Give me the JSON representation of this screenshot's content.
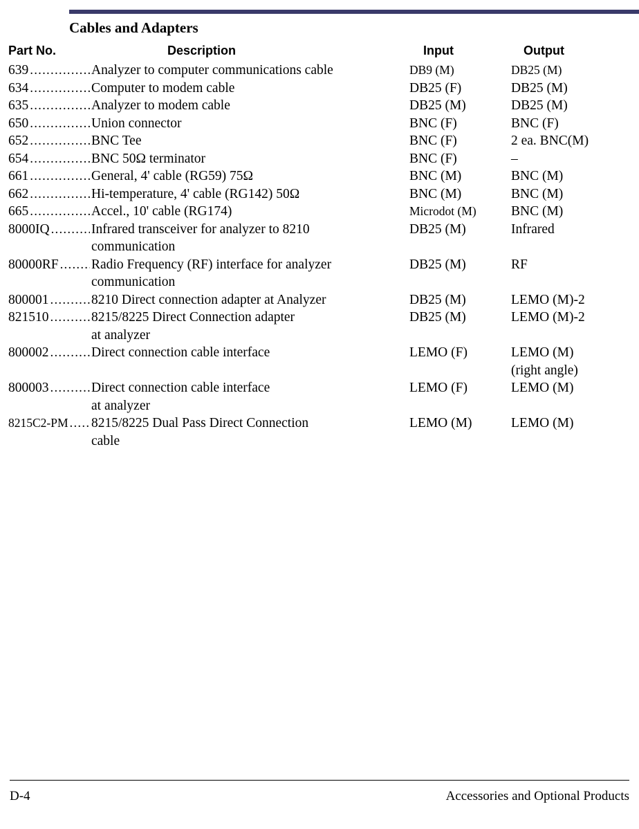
{
  "colors": {
    "topbar": "#3a3a6a",
    "text": "#000000",
    "background": "#ffffff"
  },
  "section_title": "Cables and Adapters",
  "headers": {
    "part": "Part No.",
    "desc": "Description",
    "input": "Input",
    "output": "Output"
  },
  "rows": [
    {
      "part": "639",
      "desc": "Analyzer to computer communications cable",
      "input": "DB9 (M)",
      "input_cond": true,
      "output": "DB25 (M)",
      "output_cond": true
    },
    {
      "part": "634",
      "desc": "Computer to modem cable",
      "input": "DB25 (F)",
      "output": "DB25 (M)"
    },
    {
      "part": "635",
      "desc": "Analyzer to modem cable",
      "input": "DB25 (M)",
      "output": "DB25 (M)"
    },
    {
      "part": "650",
      "desc": "Union connector",
      "input": "BNC (F)",
      "output": "BNC (F)"
    },
    {
      "part": "652",
      "desc": "BNC Tee",
      "input": "BNC (F)",
      "output": "2 ea. BNC(M)"
    },
    {
      "part": "654",
      "desc": "BNC 50Ω terminator",
      "input": "BNC (F)",
      "output": " –"
    },
    {
      "part": "661",
      "desc": "General, 4' cable (RG59) 75Ω",
      "input": "BNC (M)",
      "output": "BNC (M)"
    },
    {
      "part": "662",
      "desc": "Hi-temperature, 4' cable (RG142) 50Ω",
      "input": "BNC (M)",
      "output": "BNC (M)"
    },
    {
      "part": "665",
      "desc": "Accel., 10' cable (RG174)",
      "input": "Microdot (M)",
      "input_cond": true,
      "output": "BNC (M)"
    },
    {
      "part": "8000IQ",
      "desc": "Infrared transceiver for analyzer to 8210",
      "desc2": "communication",
      "input": "DB25 (M)",
      "output": "Infrared"
    },
    {
      "part": "80000RF",
      "desc": "Radio Frequency (RF) interface for analyzer",
      "desc2": "communication",
      "input": "DB25 (M)",
      "output": "RF"
    },
    {
      "part": "800001",
      "desc": "8210 Direct connection adapter at Analyzer",
      "input": "DB25 (M)",
      "output": "LEMO (M)-2"
    },
    {
      "part": "821510",
      "desc": "8215/8225 Direct Connection adapter",
      "desc2": "at analyzer",
      "input": "DB25 (M)",
      "output": "LEMO (M)-2"
    },
    {
      "part": "800002",
      "desc": "Direct connection cable interface",
      "input": "LEMO (F)",
      "output": "LEMO (M)",
      "output2": "(right angle)"
    },
    {
      "part": "800003",
      "desc": "Direct connection cable interface",
      "desc2": "at analyzer",
      "input": "LEMO (F)",
      "output": "LEMO (M)"
    },
    {
      "part": "8215C2-PM",
      "part_cond": true,
      "desc": "8215/8225 Dual Pass Direct Connection",
      "desc2": "cable",
      "input": "LEMO (M)",
      "output": "LEMO (M)"
    }
  ],
  "footer": {
    "left": "D-4",
    "right": "Accessories and Optional Products"
  }
}
